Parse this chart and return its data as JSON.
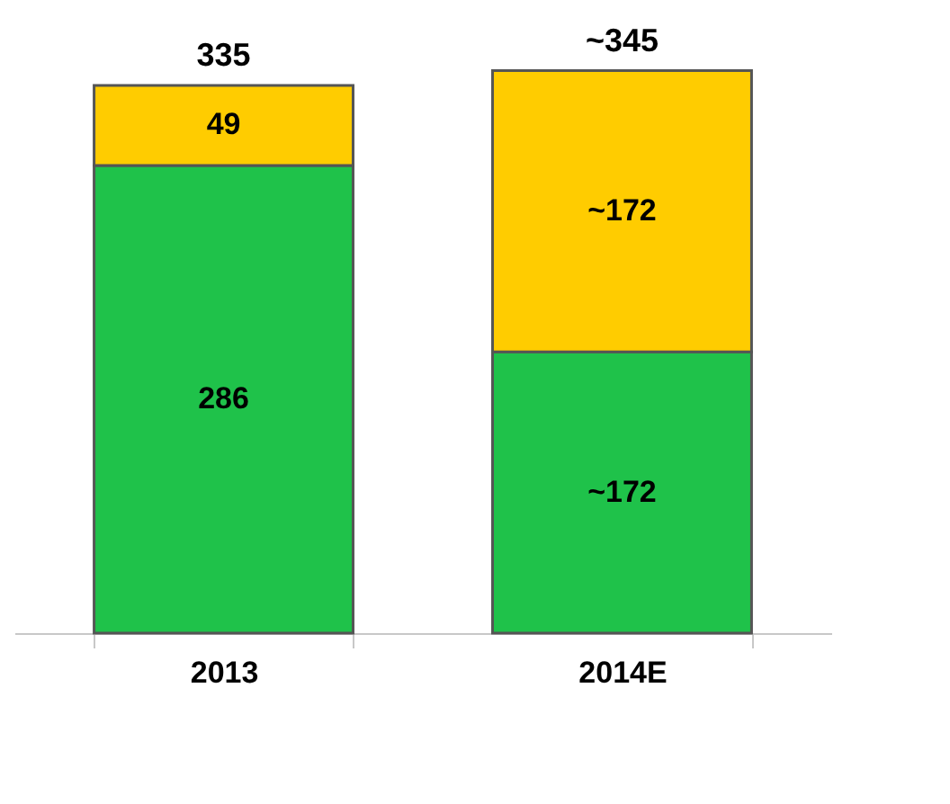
{
  "chart_data": {
    "type": "bar",
    "stacked": true,
    "categories": [
      "2013",
      "2014E"
    ],
    "series": [
      {
        "color": "#1fc24a",
        "values": [
          286,
          172
        ],
        "value_labels": [
          "286",
          "~172"
        ]
      },
      {
        "color": "#ffcc00",
        "values": [
          49,
          172
        ],
        "value_labels": [
          "49",
          "~172"
        ]
      }
    ],
    "totals": [
      "335",
      "~345"
    ],
    "tick_labels": "x",
    "grid": false
  }
}
